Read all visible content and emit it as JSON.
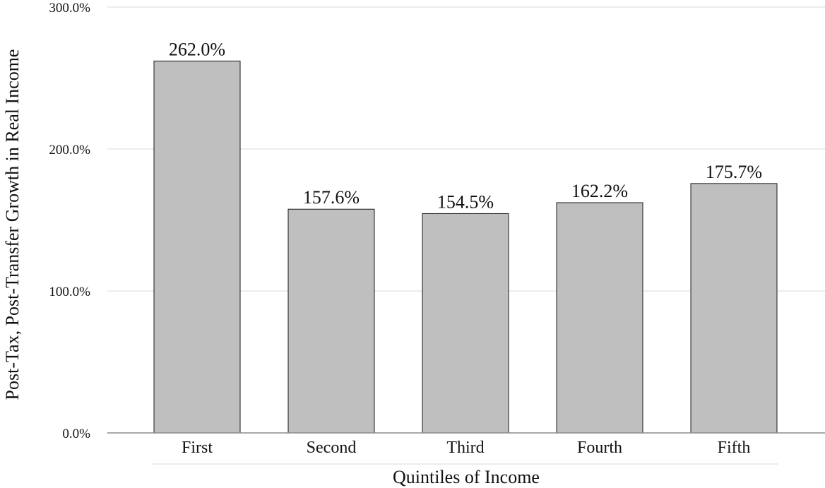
{
  "chart_data": {
    "type": "bar",
    "title": "",
    "xlabel": "Quintiles of Income",
    "ylabel": "Post-Tax, Post-Transfer Growth in Real Income",
    "categories": [
      "First",
      "Second",
      "Third",
      "Fourth",
      "Fifth"
    ],
    "values": [
      262.0,
      157.6,
      154.5,
      162.2,
      175.7
    ],
    "data_labels": [
      "262.0%",
      "157.6%",
      "154.5%",
      "162.2%",
      "175.7%"
    ],
    "ylim": [
      0,
      300
    ],
    "yticks": [
      0,
      100,
      200,
      300
    ],
    "ytick_labels": [
      "0.0%",
      "100.0%",
      "200.0%",
      "300.0%"
    ],
    "grid": true,
    "legend": "none",
    "colors": {
      "bar_fill": "#bfbfbf",
      "bar_stroke": "#1a1a1a",
      "gridline": "#d9d9d9",
      "axis": "#8c8c8c"
    }
  }
}
